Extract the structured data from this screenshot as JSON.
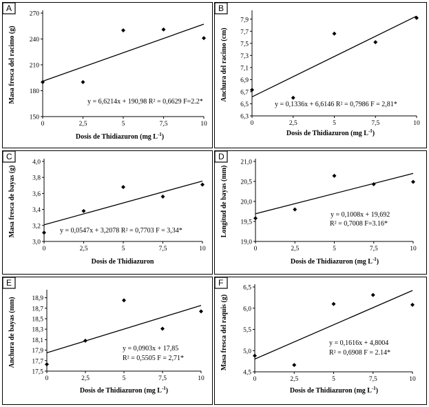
{
  "chart_data": [
    {
      "id": "A",
      "type": "scatter",
      "letter": "A",
      "x": [
        0,
        2.5,
        5,
        7.5,
        10
      ],
      "y": [
        190,
        190,
        250,
        251,
        241
      ],
      "trend": {
        "slope": 6.6214,
        "intercept": 190.98
      },
      "xlabel_main": "Dosis de Thidiazuron (mg L",
      "xlabel_sup": "-1",
      "xlabel_end": ")",
      "ylabel": "Masa fresca del racimo (g)",
      "ylim": [
        150,
        270
      ],
      "yticks": [
        "150",
        "180",
        "210",
        "240",
        "270"
      ],
      "ytick_values": [
        150,
        180,
        210,
        240,
        270
      ],
      "xticks": [
        "0",
        "2,5",
        "5",
        "7,5",
        "10"
      ],
      "xtick_values": [
        0,
        2.5,
        5,
        7.5,
        10
      ],
      "annotation": [
        "y = 6,6214x + 190,98 R² = 0,6629 F=2.2*"
      ]
    },
    {
      "id": "B",
      "type": "scatter",
      "letter": "B",
      "x": [
        0,
        2.5,
        5,
        7.5,
        10
      ],
      "y": [
        6.73,
        6.6,
        7.66,
        7.52,
        7.92
      ],
      "trend": {
        "slope": 0.1336,
        "intercept": 6.6146
      },
      "xlabel_main": "Dosis de Thidiazuron (mg L",
      "xlabel_sup": "-1",
      "xlabel_end": ")",
      "ylabel": "Anchura del racimo (cm)",
      "ylim": [
        6.3,
        8.0
      ],
      "yticks": [
        "6,3",
        "6,5",
        "6,7",
        "6,9",
        "7,1",
        "7,3",
        "7,5",
        "7,7",
        "7,9"
      ],
      "ytick_values": [
        6.3,
        6.5,
        6.7,
        6.9,
        7.1,
        7.3,
        7.5,
        7.7,
        7.9
      ],
      "xticks": [
        "0",
        "2,5",
        "5",
        "7,5",
        "10"
      ],
      "xtick_values": [
        0,
        2.5,
        5,
        7.5,
        10
      ],
      "annotation": [
        "y = 0,1336x + 6,6146 R² = 0,7986 F = 2,81*"
      ]
    },
    {
      "id": "C",
      "type": "scatter",
      "letter": "C",
      "x": [
        0,
        2.5,
        5,
        7.5,
        10
      ],
      "y": [
        3.11,
        3.38,
        3.68,
        3.56,
        3.71
      ],
      "trend": {
        "slope": 0.0547,
        "intercept": 3.2078
      },
      "xlabel_main": "Dosis de Thidiazuron",
      "xlabel_sup": "",
      "xlabel_end": "",
      "ylabel": "Masa fresca de bayas (g)",
      "ylim": [
        3.0,
        4.0
      ],
      "yticks": [
        "3,0",
        "3,2",
        "3,4",
        "3,6",
        "3,8",
        "4,0"
      ],
      "ytick_values": [
        3.0,
        3.2,
        3.4,
        3.6,
        3.8,
        4.0
      ],
      "xticks": [
        "0",
        "2,5",
        "5",
        "7,5",
        "10"
      ],
      "xtick_values": [
        0,
        2.5,
        5,
        7.5,
        10
      ],
      "annotation": [
        "y = 0,0547x + 3,2078 R² = 0,7703 F = 3,34*"
      ]
    },
    {
      "id": "D",
      "type": "scatter",
      "letter": "D",
      "x": [
        0,
        2.5,
        5,
        7.5,
        10
      ],
      "y": [
        19.58,
        19.8,
        20.64,
        20.43,
        20.49
      ],
      "trend": {
        "slope": 0.1008,
        "intercept": 19.692
      },
      "xlabel_main": "Dosis de Thidiazuron (mg L",
      "xlabel_sup": "-1",
      "xlabel_end": ")",
      "ylabel": "Longitud de bayas (mm)",
      "ylim": [
        19.0,
        21.0
      ],
      "yticks": [
        "19,0",
        "19,5",
        "20,0",
        "20,5",
        "21,0"
      ],
      "ytick_values": [
        19.0,
        19.5,
        20.0,
        20.5,
        21.0
      ],
      "xticks": [
        "0",
        "2,5",
        "5",
        "7,5",
        "10"
      ],
      "xtick_values": [
        0,
        2.5,
        5,
        7.5,
        10
      ],
      "annotation": [
        "y = 0,1008x + 19,692",
        "R² = 0,7008 F=3.16*"
      ]
    },
    {
      "id": "E",
      "type": "scatter",
      "letter": "E",
      "x": [
        0,
        2.5,
        5,
        7.5,
        10
      ],
      "y": [
        17.63,
        18.08,
        18.85,
        18.31,
        18.64
      ],
      "trend": {
        "slope": 0.0903,
        "intercept": 17.85
      },
      "xlabel_main": "Dosis de Thidiazuron (mg L",
      "xlabel_sup": "-1",
      "xlabel_end": ")",
      "ylabel": "Anchura de bayas (mm)",
      "ylim": [
        17.5,
        19.0
      ],
      "yticks": [
        "17,5",
        "17,7",
        "17,9",
        "18,1",
        "18,3",
        "18,5",
        "18,7",
        "18,9"
      ],
      "ytick_values": [
        17.5,
        17.7,
        17.9,
        18.1,
        18.3,
        18.5,
        18.7,
        18.9
      ],
      "xticks": [
        "0",
        "2,5",
        "5",
        "7,5",
        "10"
      ],
      "xtick_values": [
        0,
        2.5,
        5,
        7.5,
        10
      ],
      "annotation": [
        "y = 0,0903x + 17,85",
        "R² = 0,5505 F = 2,71*"
      ]
    },
    {
      "id": "F",
      "type": "scatter",
      "letter": "F",
      "x": [
        0,
        2.5,
        5,
        7.5,
        10
      ],
      "y": [
        4.88,
        4.66,
        6.1,
        6.31,
        6.08
      ],
      "trend": {
        "slope": 0.1616,
        "intercept": 4.8004
      },
      "xlabel_main": "Dosis de Thidiazuron (mg L",
      "xlabel_sup": "-1",
      "xlabel_end": ")",
      "ylabel": "Masa fresca del raquis (g)",
      "ylim": [
        4.5,
        6.5
      ],
      "yticks": [
        "4,5",
        "5,0",
        "5,5",
        "6,0",
        "6,5"
      ],
      "ytick_values": [
        4.5,
        5.0,
        5.5,
        6.0,
        6.5
      ],
      "xticks": [
        "0",
        "2,5",
        "5",
        "7,5",
        "10"
      ],
      "xtick_values": [
        0,
        2.5,
        5,
        7.5,
        10
      ],
      "annotation": [
        "y = 0,1616x + 4,8004",
        "R² = 0,6908 F = 2.14*"
      ]
    }
  ]
}
